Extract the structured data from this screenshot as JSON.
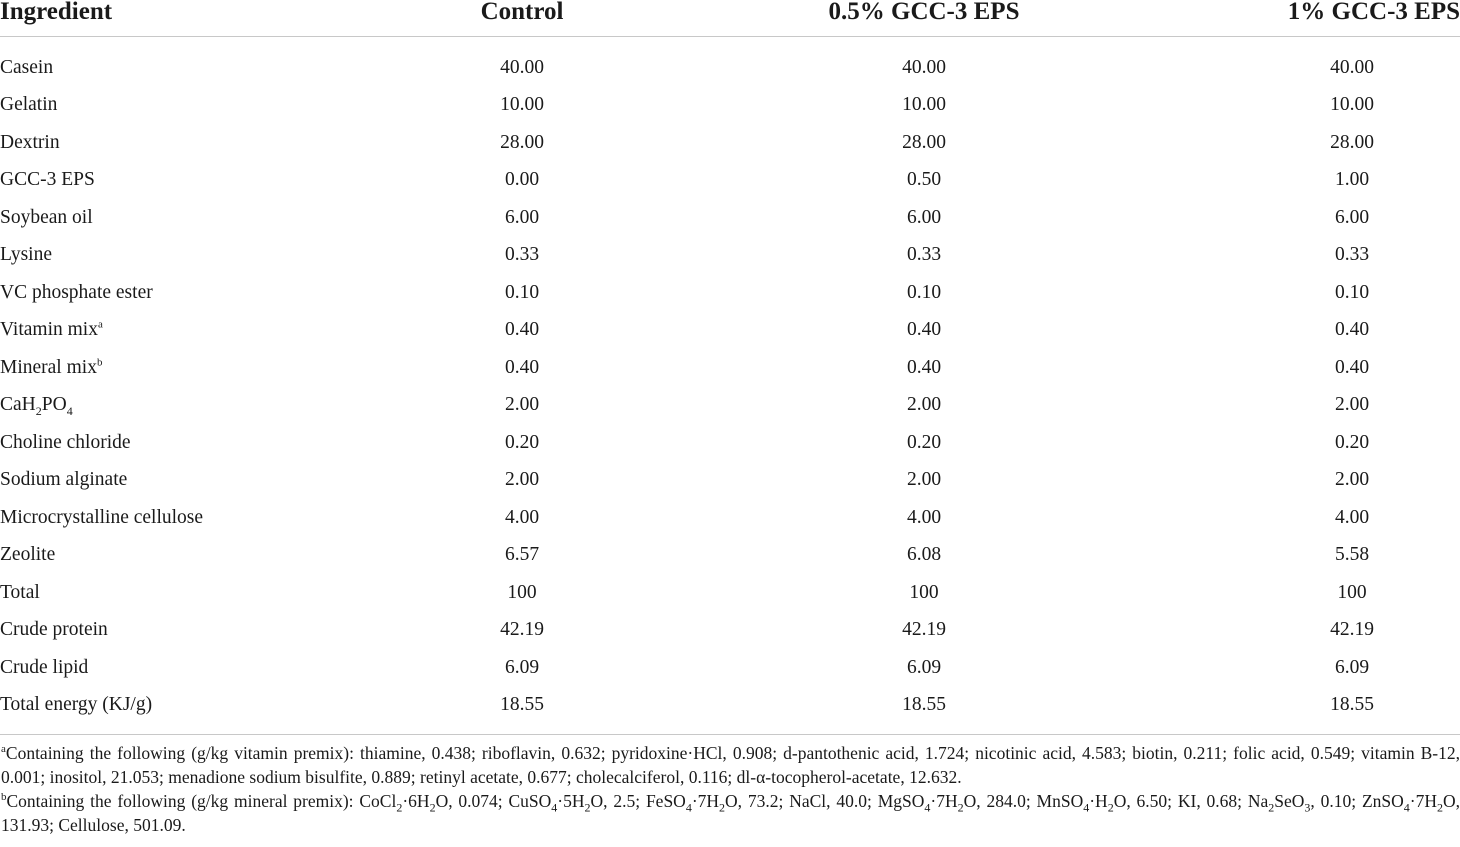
{
  "table": {
    "headers": [
      "Ingredient",
      "Control",
      "0.5% GCC-3 EPS",
      "1% GCC-3 EPS"
    ],
    "rows": [
      {
        "name": "Casein",
        "control": "40.00",
        "eps_05": "40.00",
        "eps_1": "40.00"
      },
      {
        "name": "Gelatin",
        "control": "10.00",
        "eps_05": "10.00",
        "eps_1": "10.00"
      },
      {
        "name": "Dextrin",
        "control": "28.00",
        "eps_05": "28.00",
        "eps_1": "28.00"
      },
      {
        "name": "GCC-3 EPS",
        "control": "0.00",
        "eps_05": "0.50",
        "eps_1": "1.00"
      },
      {
        "name": "Soybean oil",
        "control": "6.00",
        "eps_05": "6.00",
        "eps_1": "6.00"
      },
      {
        "name": "Lysine",
        "control": "0.33",
        "eps_05": "0.33",
        "eps_1": "0.33"
      },
      {
        "name": "VC phosphate ester",
        "control": "0.10",
        "eps_05": "0.10",
        "eps_1": "0.10"
      },
      {
        "name": "Vitamin mix",
        "sup": "a",
        "control": "0.40",
        "eps_05": "0.40",
        "eps_1": "0.40"
      },
      {
        "name": "Mineral mix",
        "sup": "b",
        "control": "0.40",
        "eps_05": "0.40",
        "eps_1": "0.40"
      },
      {
        "name_parts": [
          "CaH",
          "2",
          "PO",
          "4"
        ],
        "control": "2.00",
        "eps_05": "2.00",
        "eps_1": "2.00"
      },
      {
        "name": "Choline chloride",
        "control": "0.20",
        "eps_05": "0.20",
        "eps_1": "0.20"
      },
      {
        "name": "Sodium alginate",
        "control": "2.00",
        "eps_05": "2.00",
        "eps_1": "2.00"
      },
      {
        "name": "Microcrystalline cellulose",
        "control": "4.00",
        "eps_05": "4.00",
        "eps_1": "4.00"
      },
      {
        "name": "Zeolite",
        "control": "6.57",
        "eps_05": "6.08",
        "eps_1": "5.58"
      },
      {
        "name": "Total",
        "control": "100",
        "eps_05": "100",
        "eps_1": "100"
      },
      {
        "name": "Crude protein",
        "control": "42.19",
        "eps_05": "42.19",
        "eps_1": "42.19"
      },
      {
        "name": "Crude lipid",
        "control": "6.09",
        "eps_05": "6.09",
        "eps_1": "6.09"
      },
      {
        "name": "Total energy (KJ/g)",
        "control": "18.55",
        "eps_05": "18.55",
        "eps_1": "18.55"
      }
    ]
  },
  "footnotes": {
    "a": {
      "marker": "a",
      "text": "Containing the following (g/kg vitamin premix): thiamine, 0.438; riboflavin, 0.632; pyridoxine·HCl, 0.908; d-pantothenic acid, 1.724; nicotinic acid, 4.583; biotin, 0.211; folic acid, 0.549; vitamin B-12, 0.001; inositol, 21.053; menadione sodium bisulfite, 0.889; retinyl acetate, 0.677; cholecalciferol, 0.116; dl-α-tocopherol-acetate, 12.632."
    },
    "b": {
      "marker": "b",
      "parts": [
        {
          "t": "Containing the following (g/kg mineral premix): CoCl"
        },
        {
          "sub": "2"
        },
        {
          "t": "·6H"
        },
        {
          "sub": "2"
        },
        {
          "t": "O, 0.074; CuSO"
        },
        {
          "sub": "4"
        },
        {
          "t": "·5H"
        },
        {
          "sub": "2"
        },
        {
          "t": "O, 2.5; FeSO"
        },
        {
          "sub": "4"
        },
        {
          "t": "·7H"
        },
        {
          "sub": "2"
        },
        {
          "t": "O, 73.2; NaCl, 40.0; MgSO"
        },
        {
          "sub": "4"
        },
        {
          "t": "·7H"
        },
        {
          "sub": "2"
        },
        {
          "t": "O, 284.0; MnSO"
        },
        {
          "sub": "4"
        },
        {
          "t": "·H"
        },
        {
          "sub": "2"
        },
        {
          "t": "O, 6.50; KI, 0.68; Na"
        },
        {
          "sub": "2"
        },
        {
          "t": "SeO"
        },
        {
          "sub": "3"
        },
        {
          "t": ", 0.10; ZnSO"
        },
        {
          "sub": "4"
        },
        {
          "t": "·7H"
        },
        {
          "sub": "2"
        },
        {
          "t": "O, 131.93; Cellulose, 501.09."
        }
      ]
    }
  }
}
